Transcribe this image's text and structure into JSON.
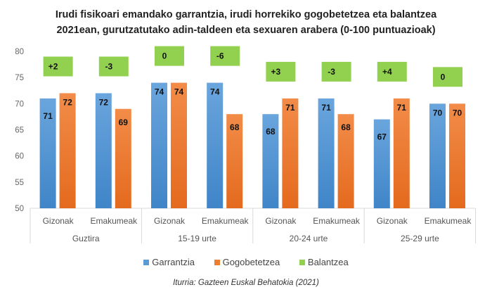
{
  "chart_data": {
    "type": "bar",
    "title_lines": [
      "Irudi fisikoari emandako garrantzia, irudi horrekiko gogobetetzea eta  balantzea",
      "2021ean, gurutzatutako adin-taldeen eta sexuaren arabera (0-100 puntuazioak)"
    ],
    "groups": [
      "Guztira",
      "15-19 urte",
      "20-24 urte",
      "25-29 urte"
    ],
    "categories": [
      "Gizonak",
      "Emakumeak",
      "Gizonak",
      "Emakumeak",
      "Gizonak",
      "Emakumeak",
      "Gizonak",
      "Emakumeak"
    ],
    "series": [
      {
        "name": "Garrantzia",
        "color": "#5B9BD5",
        "values": [
          71,
          72,
          74,
          74,
          68,
          71,
          67,
          70
        ]
      },
      {
        "name": "Gogobetetzea",
        "color": "#ED7D31",
        "values": [
          72,
          69,
          74,
          68,
          71,
          68,
          71,
          70
        ]
      },
      {
        "name": "Balantzea",
        "color": "#92D050",
        "labels": [
          "+2",
          "-3",
          "0",
          "-6",
          "+3",
          "-3",
          "+4",
          "0"
        ]
      }
    ],
    "ylim": [
      50,
      80
    ],
    "yticks": [
      50,
      55,
      60,
      65,
      70,
      75,
      80
    ],
    "legend": "bottom",
    "grid": false
  },
  "source": "Iturria: Gazteen Euskal Behatokia (2021)"
}
